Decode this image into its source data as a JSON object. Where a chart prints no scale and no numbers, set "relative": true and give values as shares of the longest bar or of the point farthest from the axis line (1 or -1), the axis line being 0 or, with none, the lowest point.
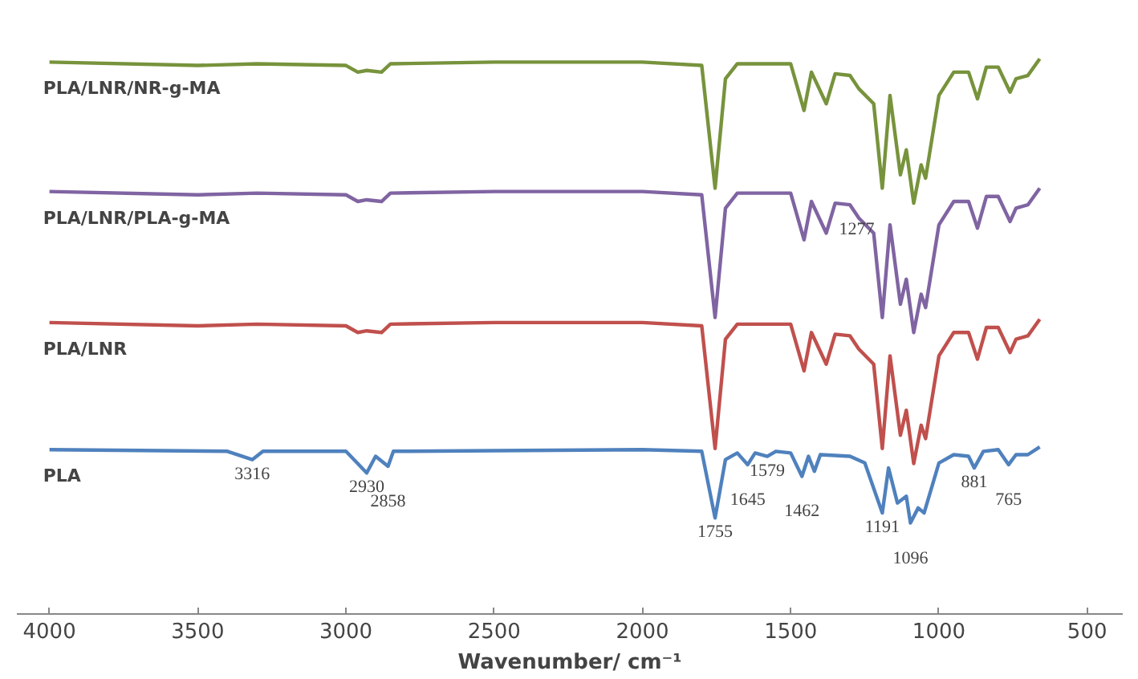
{
  "chart_data": {
    "type": "line",
    "relative": true,
    "xlabel": "Wavenumber/ cm⁻¹",
    "xlim": [
      4110,
      380
    ],
    "xticks": [
      4000,
      3500,
      3000,
      2500,
      2000,
      1500,
      1000,
      500
    ],
    "grid": false,
    "legend": false,
    "marker": "none",
    "line_style": "solid",
    "x": [
      4000,
      3500,
      3300,
      3000,
      2960,
      2930,
      2880,
      2850,
      2500,
      2000,
      1800,
      1755,
      1720,
      1680,
      1500,
      1455,
      1430,
      1380,
      1350,
      1300,
      1270,
      1220,
      1191,
      1165,
      1130,
      1110,
      1085,
      1060,
      1045,
      1000,
      950,
      900,
      870,
      840,
      800,
      760,
      740,
      700,
      660
    ],
    "series": [
      {
        "name": "PLA/LNR/NR-g-MA",
        "color": "#77933c",
        "values": [
          0.994,
          0.988,
          0.991,
          0.988,
          0.976,
          0.979,
          0.976,
          0.991,
          0.994,
          0.994,
          0.988,
          0.767,
          0.964,
          0.991,
          0.991,
          0.907,
          0.976,
          0.919,
          0.973,
          0.97,
          0.946,
          0.919,
          0.767,
          0.934,
          0.791,
          0.836,
          0.74,
          0.809,
          0.785,
          0.934,
          0.976,
          0.976,
          0.928,
          0.985,
          0.985,
          0.94,
          0.964,
          0.97,
          1.0
        ]
      },
      {
        "name": "PLA/LNR/PLA-g-MA",
        "color": "#8064a2",
        "values": [
          0.761,
          0.755,
          0.758,
          0.755,
          0.743,
          0.746,
          0.743,
          0.758,
          0.761,
          0.761,
          0.755,
          0.534,
          0.731,
          0.758,
          0.758,
          0.674,
          0.743,
          0.686,
          0.74,
          0.737,
          0.713,
          0.686,
          0.534,
          0.701,
          0.558,
          0.603,
          0.507,
          0.576,
          0.552,
          0.701,
          0.743,
          0.743,
          0.695,
          0.752,
          0.752,
          0.707,
          0.731,
          0.737,
          0.767
        ]
      },
      {
        "name": "PLA/LNR",
        "color": "#c0504d",
        "values": [
          0.525,
          0.519,
          0.522,
          0.519,
          0.507,
          0.51,
          0.507,
          0.522,
          0.525,
          0.525,
          0.519,
          0.298,
          0.495,
          0.522,
          0.522,
          0.438,
          0.507,
          0.45,
          0.504,
          0.501,
          0.477,
          0.45,
          0.298,
          0.465,
          0.322,
          0.367,
          0.271,
          0.34,
          0.316,
          0.465,
          0.507,
          0.507,
          0.459,
          0.516,
          0.516,
          0.471,
          0.495,
          0.501,
          0.531
        ]
      },
      {
        "name": "PLA",
        "color": "#4f81bd",
        "x": [
          4000,
          3400,
          3316,
          3280,
          3000,
          2930,
          2900,
          2858,
          2840,
          2000,
          1800,
          1755,
          1720,
          1680,
          1645,
          1620,
          1579,
          1550,
          1500,
          1462,
          1440,
          1420,
          1400,
          1300,
          1250,
          1191,
          1170,
          1140,
          1110,
          1096,
          1070,
          1050,
          1000,
          950,
          900,
          881,
          850,
          800,
          765,
          740,
          700,
          660
        ],
        "values": [
          0.296,
          0.293,
          0.278,
          0.293,
          0.293,
          0.254,
          0.284,
          0.266,
          0.293,
          0.296,
          0.293,
          0.173,
          0.278,
          0.29,
          0.269,
          0.29,
          0.284,
          0.293,
          0.29,
          0.248,
          0.284,
          0.257,
          0.287,
          0.284,
          0.272,
          0.182,
          0.263,
          0.2,
          0.212,
          0.164,
          0.191,
          0.182,
          0.272,
          0.287,
          0.284,
          0.263,
          0.293,
          0.296,
          0.269,
          0.287,
          0.287,
          0.301
        ]
      }
    ],
    "annotations": [
      {
        "text": "1277",
        "x": 1277,
        "y": 0.719
      },
      {
        "text": "3316",
        "x": 3316,
        "y": 0.278
      },
      {
        "text": "2930",
        "x": 2930,
        "y": 0.254
      },
      {
        "text": "2858",
        "x": 2858,
        "y": 0.266
      },
      {
        "text": "1755",
        "x": 1755,
        "y": 0.173
      },
      {
        "text": "1645",
        "x": 1645,
        "y": 0.269
      },
      {
        "text": "1579",
        "x": 1579,
        "y": 0.284
      },
      {
        "text": "1462",
        "x": 1462,
        "y": 0.248
      },
      {
        "text": "1191",
        "x": 1191,
        "y": 0.182
      },
      {
        "text": "1096",
        "x": 1096,
        "y": 0.164
      },
      {
        "text": "881",
        "x": 881,
        "y": 0.263
      },
      {
        "text": "765",
        "x": 765,
        "y": 0.269
      }
    ]
  }
}
